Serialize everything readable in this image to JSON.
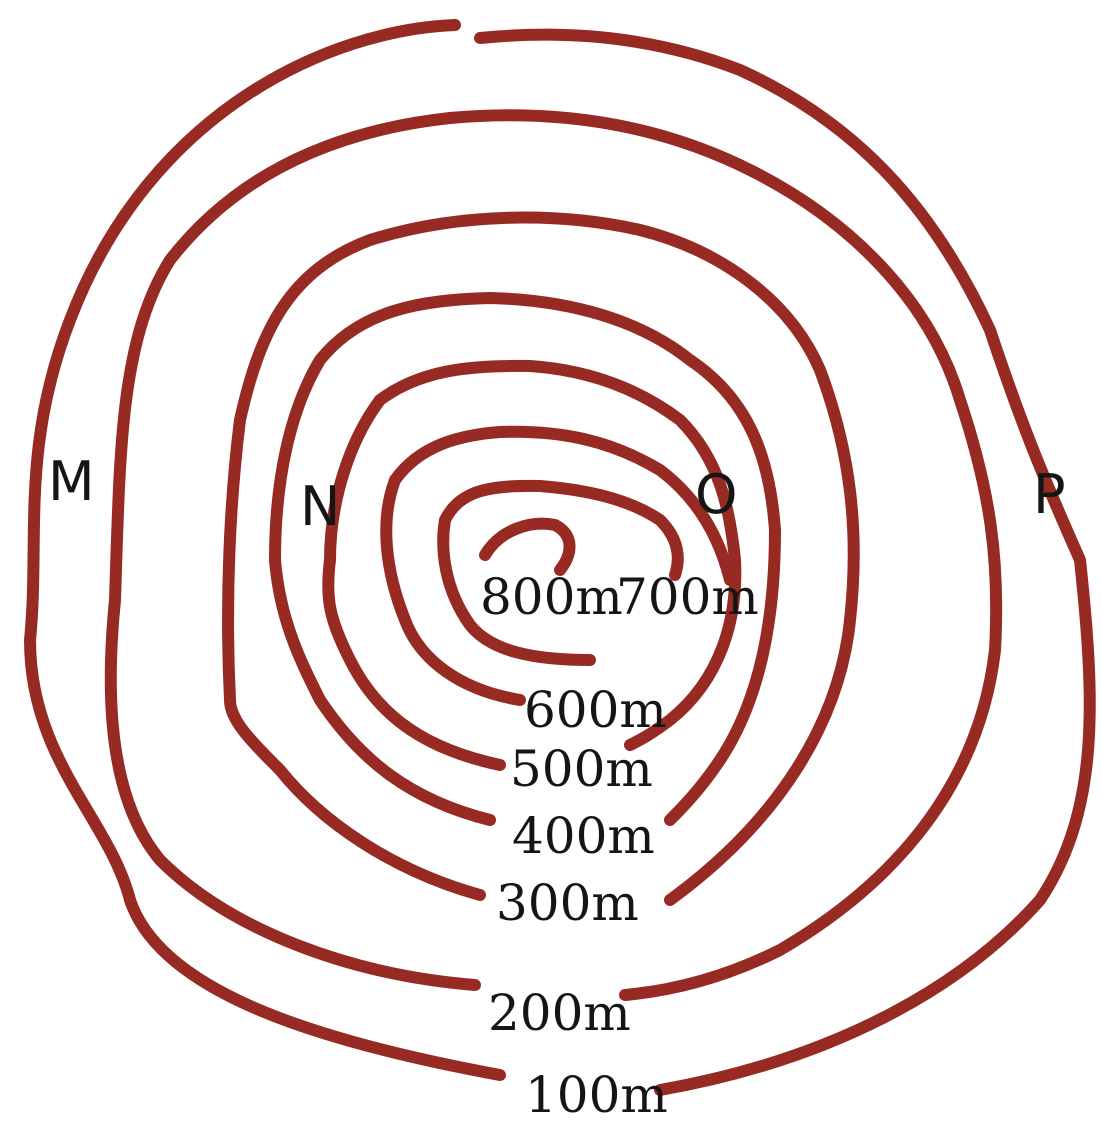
{
  "contour_color": "#982a24",
  "points": {
    "m": "M",
    "n": "N",
    "o": "O",
    "p": "P"
  },
  "contours": [
    {
      "elevation": 100,
      "label": "100m"
    },
    {
      "elevation": 200,
      "label": "200m"
    },
    {
      "elevation": 300,
      "label": "300m"
    },
    {
      "elevation": 400,
      "label": "400m"
    },
    {
      "elevation": 500,
      "label": "500m"
    },
    {
      "elevation": 600,
      "label": "600m"
    },
    {
      "elevation": 700,
      "label": "700m"
    },
    {
      "elevation": 800,
      "label": "800m"
    }
  ]
}
